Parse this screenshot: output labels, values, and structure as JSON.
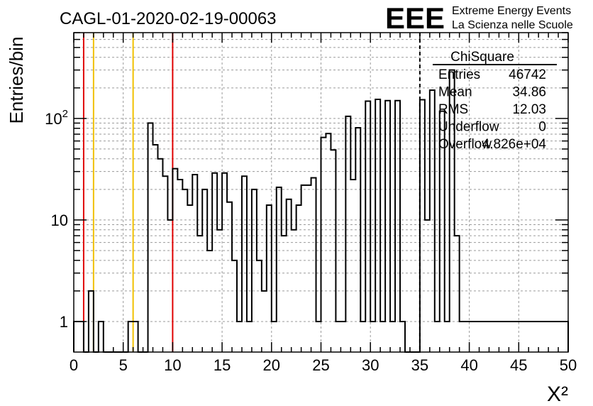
{
  "header": {
    "title": "CAGL-01-2020-02-19-00063",
    "logo_text": "EEE",
    "org_line1": "Extreme Energy Events",
    "org_line2": "La Scienza nelle Scuole"
  },
  "colors": {
    "logo_blue": "#1a1aff",
    "hist_line": "#000000",
    "red_cut": "#e00000",
    "yellow_cut": "#f0c000",
    "grid": "#9a9a9a"
  },
  "stats": {
    "title": "ChiSquare",
    "rows": [
      {
        "label": "Entries",
        "value": "46742"
      },
      {
        "label": "Mean",
        "value": "34.86"
      },
      {
        "label": "RMS",
        "value": "12.03"
      },
      {
        "label": "Underflow",
        "value": "0"
      },
      {
        "label": "Overflow",
        "value": "4.826e+04"
      }
    ]
  },
  "chart_data": {
    "type": "bar",
    "style": "step-histogram",
    "title": "CAGL-01-2020-02-19-00063",
    "xlabel": "X²",
    "ylabel": "Entries/bin",
    "xlim": [
      0,
      50
    ],
    "ylim": [
      0.5,
      700
    ],
    "yscale": "log",
    "grid": true,
    "bin_width": 0.5,
    "x_ticks": [
      0,
      5,
      10,
      15,
      20,
      25,
      30,
      35,
      40,
      45,
      50
    ],
    "x_tick_labels": [
      "0",
      "5",
      "10",
      "15",
      "20",
      "25",
      "30",
      "35",
      "40",
      "45",
      "50"
    ],
    "y_ticks": [
      1,
      10,
      100
    ],
    "y_tick_labels": [
      "1",
      "10",
      "10²"
    ],
    "values": [
      1,
      1,
      0,
      2,
      0,
      1,
      0,
      0,
      0,
      0,
      0,
      1,
      1,
      0,
      0,
      90,
      55,
      40,
      27,
      10,
      32,
      25,
      20,
      14,
      28,
      7,
      20,
      5,
      29,
      8,
      29,
      15,
      4,
      1,
      27,
      1,
      20,
      4,
      2,
      14,
      1,
      21,
      7,
      16,
      8,
      14,
      22,
      22,
      26,
      1,
      65,
      71,
      49,
      1,
      1,
      105,
      25,
      81,
      1,
      148,
      1,
      154,
      1,
      150,
      1,
      150,
      1,
      0,
      0,
      0,
      153,
      10,
      190,
      1,
      118,
      1,
      300,
      7,
      1,
      1,
      1,
      1,
      1,
      1,
      1,
      1,
      1,
      1,
      1,
      1,
      1,
      1,
      1,
      1,
      1,
      1,
      1,
      1,
      1,
      1
    ],
    "vlines": [
      {
        "x": 1.0,
        "color": "red",
        "style": "solid"
      },
      {
        "x": 2.0,
        "color": "yellow",
        "style": "solid"
      },
      {
        "x": 6.0,
        "color": "yellow",
        "style": "solid"
      },
      {
        "x": 10.0,
        "color": "red",
        "style": "solid"
      },
      {
        "x": 35.0,
        "color": "black",
        "style": "dashed"
      }
    ]
  }
}
